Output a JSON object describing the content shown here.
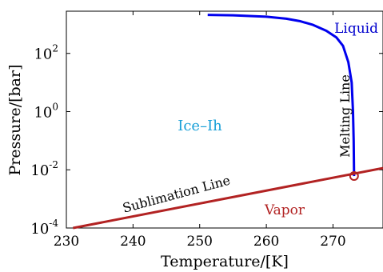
{
  "chart_data": {
    "type": "line",
    "title": "",
    "xlabel": "Temperature/[K]",
    "ylabel": "Pressure/[bar]",
    "xlim": [
      230,
      277.5
    ],
    "ylim_log10": [
      -4,
      3.45
    ],
    "yscale": "log",
    "grid": false,
    "x_ticks": [
      {
        "value": 230,
        "label": "230"
      },
      {
        "value": 240,
        "label": "240"
      },
      {
        "value": 250,
        "label": "250"
      },
      {
        "value": 260,
        "label": "260"
      },
      {
        "value": 270,
        "label": "270"
      }
    ],
    "y_ticks": [
      {
        "exp": -4,
        "base": "10",
        "sup": "-4"
      },
      {
        "exp": -2,
        "base": "10",
        "sup": "-2"
      },
      {
        "exp": 0,
        "base": "10",
        "sup": "0"
      },
      {
        "exp": 2,
        "base": "10",
        "sup": "2"
      }
    ],
    "series": [
      {
        "name": "Melting Line",
        "color": "#0000ee",
        "points": [
          {
            "x": 251.2,
            "p": 2100
          },
          {
            "x": 255,
            "p": 2030
          },
          {
            "x": 260,
            "p": 1820
          },
          {
            "x": 263,
            "p": 1560
          },
          {
            "x": 265,
            "p": 1290
          },
          {
            "x": 267,
            "p": 955
          },
          {
            "x": 269,
            "p": 600
          },
          {
            "x": 270.5,
            "p": 355
          },
          {
            "x": 271.5,
            "p": 182
          },
          {
            "x": 272.3,
            "p": 50
          },
          {
            "x": 272.8,
            "p": 10
          },
          {
            "x": 273.0,
            "p": 1
          },
          {
            "x": 273.1,
            "p": 0.1
          },
          {
            "x": 273.16,
            "p": 0.0061
          }
        ]
      },
      {
        "name": "Sublimation Line",
        "color": "#b22222",
        "points": [
          {
            "x": 231,
            "p": 0.0001
          },
          {
            "x": 277.5,
            "p": 0.0115
          }
        ]
      }
    ],
    "triple_point": {
      "x": 273.16,
      "p": 0.0061,
      "color": "#b22222"
    },
    "annotations": {
      "liquid": {
        "text": "Liquid",
        "color": "#0000cd"
      },
      "ice": {
        "text": "Ice–Ih",
        "color": "#1aa0d8"
      },
      "vapor": {
        "text": "Vapor",
        "color": "#b22222"
      },
      "melting_line": {
        "text": "Melting Line",
        "color": "#000000"
      },
      "sublimation_line": {
        "text": "Sublimation Line",
        "color": "#000000"
      }
    }
  }
}
